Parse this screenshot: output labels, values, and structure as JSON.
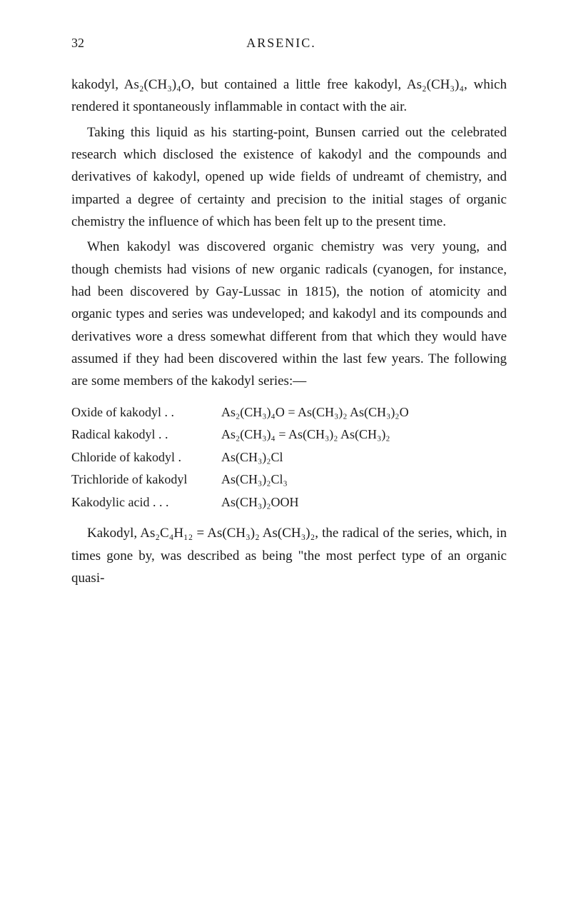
{
  "header": {
    "page_number": "32",
    "title": "ARSENIC."
  },
  "paragraphs": {
    "p1": "kakodyl, As₂(CH₃)₄O, but contained a little free kakodyl, As₂(CH₃)₄, which rendered it spontaneously inflammable in contact with the air.",
    "p2": "Taking this liquid as his starting-point, Bunsen carried out the celebrated research which disclosed the existence of kakodyl and the compounds and derivatives of kakodyl, opened up wide fields of undreamt of chemistry, and imparted a degree of certainty and precision to the initial stages of organic chemistry the influence of which has been felt up to the present time.",
    "p3": "When kakodyl was discovered organic chemistry was very young, and though chemists had visions of new organic radicals (cyanogen, for instance, had been discovered by Gay-Lussac in 1815), the notion of atomicity and organic types and series was undeveloped; and kakodyl and its compounds and derivatives wore a dress somewhat different from that which they would have assumed if they had been discovered within the last few years. The following are some members of the kakodyl series:—",
    "p4": "Kakodyl, As₂C₄H₁₂ = As(CH₃)₂ As(CH₃)₂, the radical of the series, which, in times gone by, was described as being \"the most perfect type of an organic quasi-"
  },
  "table": {
    "rows": [
      {
        "label": "Oxide of kakodyl . .",
        "formula": "As₂(CH₃)₄O = As(CH₃)₂ As(CH₃)₂O"
      },
      {
        "label": "Radical kakodyl  . .",
        "formula": "As₂(CH₃)₄  = As(CH₃)₂ As(CH₃)₂"
      },
      {
        "label": "Chloride of kakodyl .",
        "formula": "As(CH₃)₂Cl"
      },
      {
        "label": "Trichloride of kakodyl",
        "formula": "As(CH₃)₂Cl₃"
      },
      {
        "label": "Kakodylic acid .  .  .",
        "formula": "As(CH₃)₂OOH"
      }
    ]
  },
  "style": {
    "background_color": "#ffffff",
    "text_color": "#1a1a1a",
    "body_fontsize": 19,
    "header_fontsize": 18,
    "line_height": 1.65
  }
}
